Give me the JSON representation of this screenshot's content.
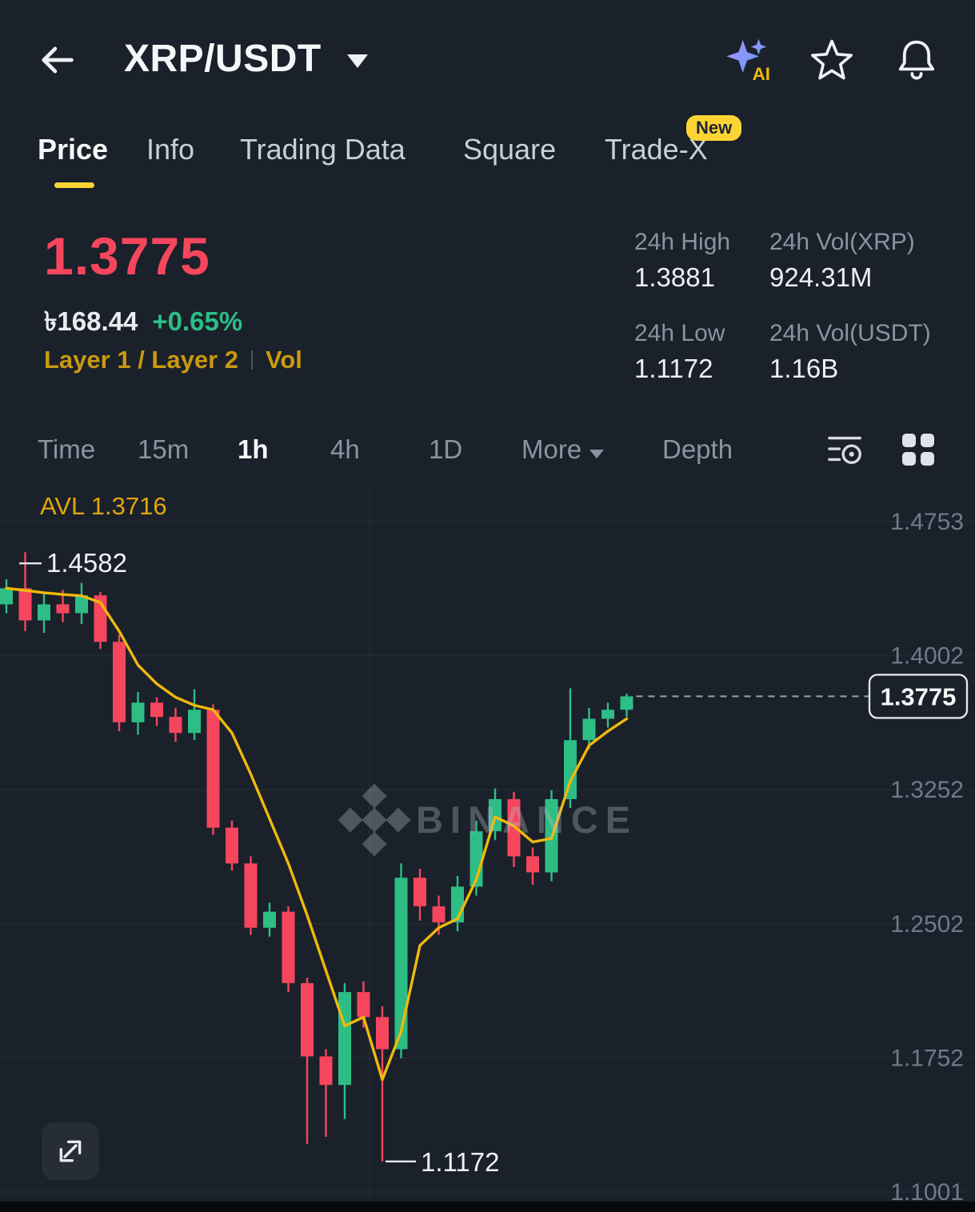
{
  "header": {
    "title": "XRP/USDT"
  },
  "tabs": {
    "active": "Price",
    "items": [
      {
        "label": "Price"
      },
      {
        "label": "Info"
      },
      {
        "label": "Trading Data"
      },
      {
        "label": "Square"
      },
      {
        "label": "Trade-X",
        "badge": "New"
      }
    ]
  },
  "price_panel": {
    "last_price": "1.3775",
    "fiat_price": "৳168.44",
    "change_percent": "+0.65%",
    "tag_layers": "Layer 1 / Layer 2",
    "tag_vol": "Vol",
    "stats": [
      {
        "label": "24h High",
        "value": "1.3881"
      },
      {
        "label": "24h Vol(XRP)",
        "value": "924.31M"
      },
      {
        "label": "24h Low",
        "value": "1.1172"
      },
      {
        "label": "24h Vol(USDT)",
        "value": "1.16B"
      }
    ]
  },
  "toolbar": {
    "items": [
      "Time",
      "15m",
      "1h",
      "4h",
      "1D",
      "More",
      "Depth"
    ],
    "active": "1h"
  },
  "chart": {
    "avl_label": "AVL 1.3716",
    "max_label": "1.4582",
    "min_label": "1.1172",
    "current_price": "1.3775",
    "watermark": "BINANCE",
    "axis_labels": [
      "1.4753",
      "1.4002",
      "1.3252",
      "1.2502",
      "1.1752",
      "1.1001"
    ]
  },
  "icons": {
    "header": [
      "back-arrow-icon",
      "pair-caret-down-icon",
      "ai-sparkle-icon",
      "star-outline-icon",
      "bell-icon"
    ],
    "toolbar": [
      "more-caret-down-icon",
      "indicator-search-icon",
      "layout-grid-icon"
    ],
    "chart": [
      "binance-logo-watermark-icon",
      "expand-arrows-icon"
    ]
  },
  "chart_data": {
    "type": "candlestick",
    "pair": "XRP/USDT",
    "interval": "1h",
    "y_axis": [
      1.4753,
      1.4002,
      1.3252,
      1.2502,
      1.1752,
      1.1001
    ],
    "high_marker": 1.4582,
    "low_marker": 1.1172,
    "low_marker_index": 20,
    "current_price": 1.3775,
    "ma_value": 1.3716,
    "candles": [
      [
        1.429,
        1.443,
        1.424,
        1.438
      ],
      [
        1.438,
        1.4582,
        1.414,
        1.42
      ],
      [
        1.42,
        1.436,
        1.413,
        1.429
      ],
      [
        1.429,
        1.437,
        1.419,
        1.424
      ],
      [
        1.424,
        1.441,
        1.418,
        1.434
      ],
      [
        1.434,
        1.436,
        1.404,
        1.408
      ],
      [
        1.408,
        1.412,
        1.358,
        1.363
      ],
      [
        1.363,
        1.38,
        1.356,
        1.374
      ],
      [
        1.374,
        1.377,
        1.361,
        1.366
      ],
      [
        1.366,
        1.371,
        1.352,
        1.357
      ],
      [
        1.357,
        1.3815,
        1.353,
        1.37
      ],
      [
        1.37,
        1.373,
        1.3,
        1.304
      ],
      [
        1.304,
        1.308,
        1.28,
        1.284
      ],
      [
        1.284,
        1.288,
        1.244,
        1.248
      ],
      [
        1.248,
        1.262,
        1.243,
        1.257
      ],
      [
        1.257,
        1.26,
        1.212,
        1.217
      ],
      [
        1.217,
        1.22,
        1.127,
        1.176
      ],
      [
        1.176,
        1.18,
        1.131,
        1.16
      ],
      [
        1.16,
        1.217,
        1.141,
        1.212
      ],
      [
        1.212,
        1.218,
        1.192,
        1.198
      ],
      [
        1.198,
        1.204,
        1.1172,
        1.18
      ],
      [
        1.18,
        1.284,
        1.175,
        1.276
      ],
      [
        1.276,
        1.281,
        1.252,
        1.26
      ],
      [
        1.26,
        1.266,
        1.244,
        1.251
      ],
      [
        1.251,
        1.277,
        1.246,
        1.271
      ],
      [
        1.271,
        1.308,
        1.266,
        1.302
      ],
      [
        1.302,
        1.326,
        1.297,
        1.32
      ],
      [
        1.32,
        1.324,
        1.282,
        1.288
      ],
      [
        1.288,
        1.293,
        1.272,
        1.279
      ],
      [
        1.279,
        1.325,
        1.274,
        1.32
      ],
      [
        1.32,
        1.382,
        1.315,
        1.353
      ],
      [
        1.353,
        1.371,
        1.348,
        1.365
      ],
      [
        1.365,
        1.374,
        1.36,
        1.37
      ],
      [
        1.37,
        1.379,
        1.366,
        1.3775
      ]
    ],
    "ma": [
      1.438,
      1.4368,
      1.4355,
      1.4345,
      1.4338,
      1.43,
      1.414,
      1.395,
      1.3845,
      1.377,
      1.3725,
      1.37,
      1.357,
      1.334,
      1.309,
      1.284,
      1.255,
      1.224,
      1.193,
      1.198,
      1.163,
      1.19,
      1.238,
      1.248,
      1.253,
      1.275,
      1.31,
      1.305,
      1.296,
      1.298,
      1.33,
      1.35,
      1.358,
      1.365
    ],
    "colors": {
      "up": "#2ebd85",
      "down": "#f6465d",
      "ma": "#f0b90b",
      "current_line": "#99a3af"
    }
  }
}
